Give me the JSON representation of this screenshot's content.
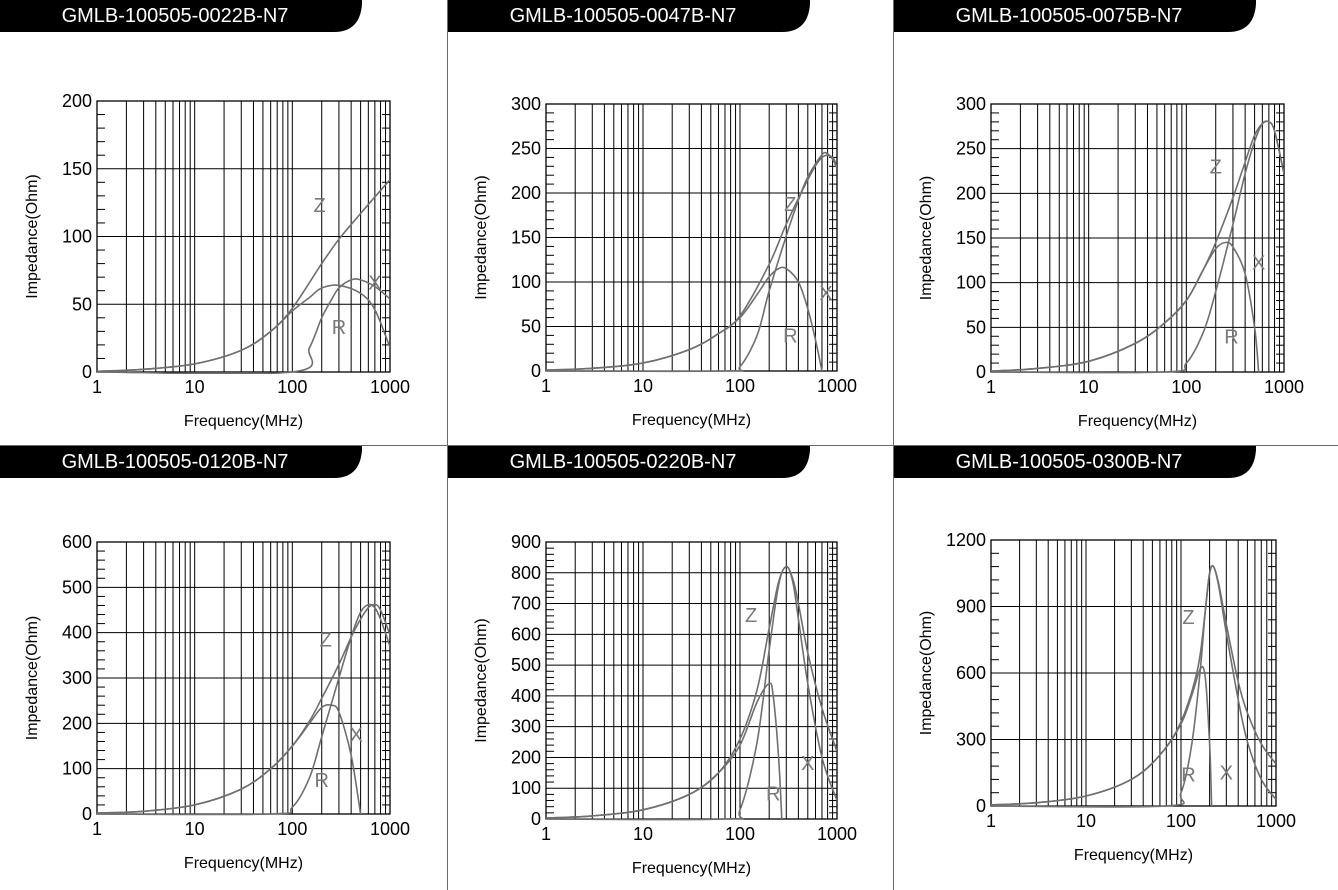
{
  "colors": {
    "curve": "#6f6f6f",
    "grid": "#000000",
    "tab_bg": "#000000",
    "tab_text": "#ffffff",
    "curve_label": "#7a7a7a"
  },
  "panels": [
    {
      "title": "GMLB-100505-0022B-N7"
    },
    {
      "title": "GMLB-100505-0047B-N7"
    },
    {
      "title": "GMLB-100505-0075B-N7"
    },
    {
      "title": "GMLB-100505-0120B-N7"
    },
    {
      "title": "GMLB-100505-0220B-N7"
    },
    {
      "title": "GMLB-100505-0300B-N7"
    }
  ],
  "chart_data": [
    {
      "type": "line",
      "title": "GMLB-100505-0022B-N7",
      "xlabel": "Frequency(MHz)",
      "ylabel": "Impedance(Ohm)",
      "xscale": "log",
      "xlim": [
        1,
        1000
      ],
      "ylim": [
        0,
        200
      ],
      "xticks": [
        1,
        10,
        100,
        1000
      ],
      "xtick_labels": [
        "1",
        "10",
        "100",
        "1000"
      ],
      "yticks": [
        0,
        50,
        100,
        150,
        200
      ],
      "ytick_labels": [
        "0",
        "50",
        "100",
        "150",
        "200"
      ],
      "grid": true,
      "series": [
        {
          "name": "Z",
          "x": [
            1,
            3,
            10,
            30,
            60,
            100,
            200,
            300,
            500,
            1000
          ],
          "y": [
            0.5,
            2,
            6,
            16,
            30,
            47,
            80,
            98,
            117,
            142
          ]
        },
        {
          "name": "R",
          "x": [
            1,
            100,
            150,
            200,
            250,
            300,
            400,
            500,
            700,
            1000
          ],
          "y": [
            0,
            0,
            18,
            40,
            53,
            62,
            68,
            68,
            63,
            54
          ]
        },
        {
          "name": "X",
          "x": [
            1,
            3,
            10,
            30,
            60,
            100,
            150,
            200,
            300,
            500,
            700,
            1000
          ],
          "y": [
            0.5,
            2,
            6,
            16,
            30,
            45,
            55,
            62,
            64,
            58,
            46,
            18
          ]
        }
      ],
      "labels": [
        {
          "text": "Z",
          "x": 190,
          "y": 118
        },
        {
          "text": "X",
          "x": 700,
          "y": 61
        },
        {
          "text": "R",
          "x": 300,
          "y": 28
        }
      ]
    },
    {
      "type": "line",
      "title": "GMLB-100505-0047B-N7",
      "xlabel": "Frequency(MHz)",
      "ylabel": "Impedance(Ohm)",
      "xscale": "log",
      "xlim": [
        1,
        1000
      ],
      "ylim": [
        0,
        300
      ],
      "xticks": [
        1,
        10,
        100,
        1000
      ],
      "xtick_labels": [
        "1",
        "10",
        "100",
        "1000"
      ],
      "yticks": [
        0,
        50,
        100,
        150,
        200,
        250,
        300
      ],
      "ytick_labels": [
        "0",
        "50",
        "100",
        "150",
        "200",
        "250",
        "300"
      ],
      "grid": true,
      "series": [
        {
          "name": "Z",
          "x": [
            1,
            3,
            10,
            30,
            60,
            100,
            200,
            300,
            500,
            700,
            900,
            1000
          ],
          "y": [
            1,
            3,
            9,
            24,
            42,
            62,
            120,
            165,
            215,
            240,
            240,
            228
          ]
        },
        {
          "name": "R",
          "x": [
            1,
            70,
            100,
            150,
            200,
            300,
            400,
            500,
            700,
            800,
            900,
            1000
          ],
          "y": [
            0,
            0,
            5,
            40,
            90,
            152,
            192,
            218,
            243,
            244,
            238,
            228
          ]
        },
        {
          "name": "X",
          "x": [
            1,
            3,
            10,
            30,
            60,
            100,
            150,
            200,
            250,
            300,
            400,
            500,
            600,
            700
          ],
          "y": [
            1,
            3,
            9,
            24,
            42,
            60,
            86,
            106,
            115,
            115,
            100,
            70,
            35,
            0
          ]
        }
      ],
      "labels": [
        {
          "text": "Z",
          "x": 330,
          "y": 180
        },
        {
          "text": "X",
          "x": 770,
          "y": 80
        },
        {
          "text": "R",
          "x": 330,
          "y": 32
        }
      ]
    },
    {
      "type": "line",
      "title": "GMLB-100505-0075B-N7",
      "xlabel": "Frequency(MHz)",
      "ylabel": "Impedance(Ohm)",
      "xscale": "log",
      "xlim": [
        1,
        1000
      ],
      "ylim": [
        0,
        300
      ],
      "xticks": [
        1,
        10,
        100,
        1000
      ],
      "xtick_labels": [
        "1",
        "10",
        "100",
        "1000"
      ],
      "yticks": [
        0,
        50,
        100,
        150,
        200,
        250,
        300
      ],
      "ytick_labels": [
        "0",
        "50",
        "100",
        "150",
        "200",
        "250",
        "300"
      ],
      "grid": true,
      "series": [
        {
          "name": "Z",
          "x": [
            1,
            3,
            10,
            30,
            60,
            100,
            150,
            200,
            300,
            400,
            500,
            600,
            700,
            800,
            1000
          ],
          "y": [
            1,
            4,
            12,
            32,
            55,
            80,
            115,
            145,
            195,
            235,
            265,
            278,
            280,
            270,
            222
          ]
        },
        {
          "name": "R",
          "x": [
            1,
            60,
            100,
            150,
            200,
            300,
            400,
            500,
            600,
            700,
            800,
            1000
          ],
          "y": [
            0,
            0,
            10,
            45,
            90,
            165,
            222,
            258,
            278,
            280,
            270,
            222
          ]
        },
        {
          "name": "X",
          "x": [
            1,
            3,
            10,
            30,
            60,
            100,
            150,
            200,
            250,
            300,
            400,
            500,
            550
          ],
          "y": [
            1,
            4,
            12,
            32,
            55,
            80,
            115,
            138,
            145,
            140,
            110,
            50,
            0
          ]
        }
      ],
      "labels": [
        {
          "text": "Z",
          "x": 200,
          "y": 222
        },
        {
          "text": "X",
          "x": 550,
          "y": 115
        },
        {
          "text": "R",
          "x": 290,
          "y": 32
        }
      ]
    },
    {
      "type": "line",
      "title": "GMLB-100505-0120B-N7",
      "xlabel": "Frequency(MHz)",
      "ylabel": "Impedance(Ohm)",
      "xscale": "log",
      "xlim": [
        1,
        1000
      ],
      "ylim": [
        0,
        600
      ],
      "xticks": [
        1,
        10,
        100,
        1000
      ],
      "xtick_labels": [
        "1",
        "10",
        "100",
        "1000"
      ],
      "yticks": [
        0,
        100,
        200,
        300,
        400,
        500,
        600
      ],
      "ytick_labels": [
        "0",
        "100",
        "200",
        "300",
        "400",
        "500",
        "600"
      ],
      "grid": true,
      "series": [
        {
          "name": "Z",
          "x": [
            1,
            3,
            10,
            30,
            60,
            100,
            150,
            200,
            300,
            400,
            500,
            600,
            700,
            800,
            1000
          ],
          "y": [
            2,
            6,
            20,
            55,
            100,
            150,
            205,
            255,
            330,
            390,
            430,
            455,
            462,
            450,
            395
          ]
        },
        {
          "name": "R",
          "x": [
            1,
            60,
            100,
            150,
            200,
            300,
            400,
            500,
            600,
            700,
            800,
            1000
          ],
          "y": [
            0,
            0,
            15,
            80,
            170,
            300,
            390,
            445,
            462,
            455,
            430,
            370
          ]
        },
        {
          "name": "X",
          "x": [
            1,
            3,
            10,
            30,
            60,
            100,
            150,
            200,
            250,
            300,
            400,
            500
          ],
          "y": [
            2,
            6,
            20,
            55,
            100,
            150,
            200,
            235,
            240,
            225,
            130,
            0
          ]
        }
      ],
      "labels": [
        {
          "text": "Z",
          "x": 220,
          "y": 370
        },
        {
          "text": "X",
          "x": 450,
          "y": 160
        },
        {
          "text": "R",
          "x": 200,
          "y": 60
        }
      ]
    },
    {
      "type": "line",
      "title": "GMLB-100505-0220B-N7",
      "xlabel": "Frequency(MHz)",
      "ylabel": "Impedance(Ohm)",
      "xscale": "log",
      "xlim": [
        1,
        1000
      ],
      "ylim": [
        0,
        900
      ],
      "xticks": [
        1,
        10,
        100,
        1000
      ],
      "xtick_labels": [
        "1",
        "10",
        "100",
        "1000"
      ],
      "yticks": [
        0,
        100,
        200,
        300,
        400,
        500,
        600,
        700,
        800,
        900
      ],
      "ytick_labels": [
        "0",
        "100",
        "200",
        "300",
        "400",
        "500",
        "600",
        "700",
        "800",
        "900"
      ],
      "grid": true,
      "series": [
        {
          "name": "Z",
          "x": [
            1,
            3,
            10,
            30,
            60,
            100,
            150,
            200,
            250,
            300,
            350,
            400,
            500,
            700,
            1000
          ],
          "y": [
            3,
            10,
            30,
            80,
            150,
            260,
            420,
            620,
            770,
            820,
            780,
            700,
            540,
            360,
            220
          ]
        },
        {
          "name": "R",
          "x": [
            1,
            70,
            100,
            150,
            200,
            250,
            300,
            350,
            400,
            500,
            700,
            1000
          ],
          "y": [
            0,
            0,
            30,
            250,
            550,
            760,
            820,
            770,
            650,
            440,
            200,
            60
          ]
        },
        {
          "name": "X",
          "x": [
            1,
            3,
            10,
            30,
            60,
            100,
            150,
            200,
            220,
            250,
            270
          ],
          "y": [
            3,
            10,
            30,
            80,
            150,
            240,
            380,
            440,
            400,
            200,
            0
          ]
        }
      ],
      "labels": [
        {
          "text": "Z",
          "x": 130,
          "y": 640
        },
        {
          "text": "X",
          "x": 500,
          "y": 160
        },
        {
          "text": "R",
          "x": 220,
          "y": 60
        }
      ]
    },
    {
      "type": "line",
      "title": "GMLB-100505-0300B-N7",
      "xlabel": "Frequency(MHz)",
      "ylabel": "Impedance(Ohm)",
      "xscale": "log",
      "xlim": [
        1,
        1000
      ],
      "ylim": [
        0,
        1200
      ],
      "xticks": [
        1,
        10,
        100,
        1000
      ],
      "xtick_labels": [
        "1",
        "10",
        "100",
        "1000"
      ],
      "yticks": [
        0,
        300,
        600,
        900,
        1200
      ],
      "ytick_labels": [
        "0",
        "300",
        "600",
        "900",
        "1200"
      ],
      "grid": true,
      "series": [
        {
          "name": "Z",
          "x": [
            1,
            3,
            10,
            30,
            60,
            100,
            150,
            180,
            200,
            220,
            250,
            300,
            400,
            500,
            700,
            1000
          ],
          "y": [
            5,
            15,
            45,
            120,
            230,
            380,
            620,
            880,
            1050,
            1080,
            1000,
            820,
            560,
            420,
            280,
            190
          ]
        },
        {
          "name": "R",
          "x": [
            1,
            70,
            100,
            130,
            160,
            180,
            200,
            220,
            250,
            300,
            400,
            500,
            700,
            1000
          ],
          "y": [
            0,
            0,
            60,
            280,
            620,
            880,
            1050,
            1080,
            990,
            780,
            480,
            290,
            120,
            30
          ]
        },
        {
          "name": "X",
          "x": [
            1,
            3,
            10,
            30,
            60,
            100,
            130,
            160,
            180,
            200,
            210
          ],
          "y": [
            5,
            15,
            45,
            120,
            230,
            370,
            500,
            620,
            580,
            280,
            0
          ]
        }
      ],
      "labels": [
        {
          "text": "Z",
          "x": 120,
          "y": 820
        },
        {
          "text": "X",
          "x": 300,
          "y": 120
        },
        {
          "text": "R",
          "x": 120,
          "y": 110
        }
      ]
    }
  ]
}
